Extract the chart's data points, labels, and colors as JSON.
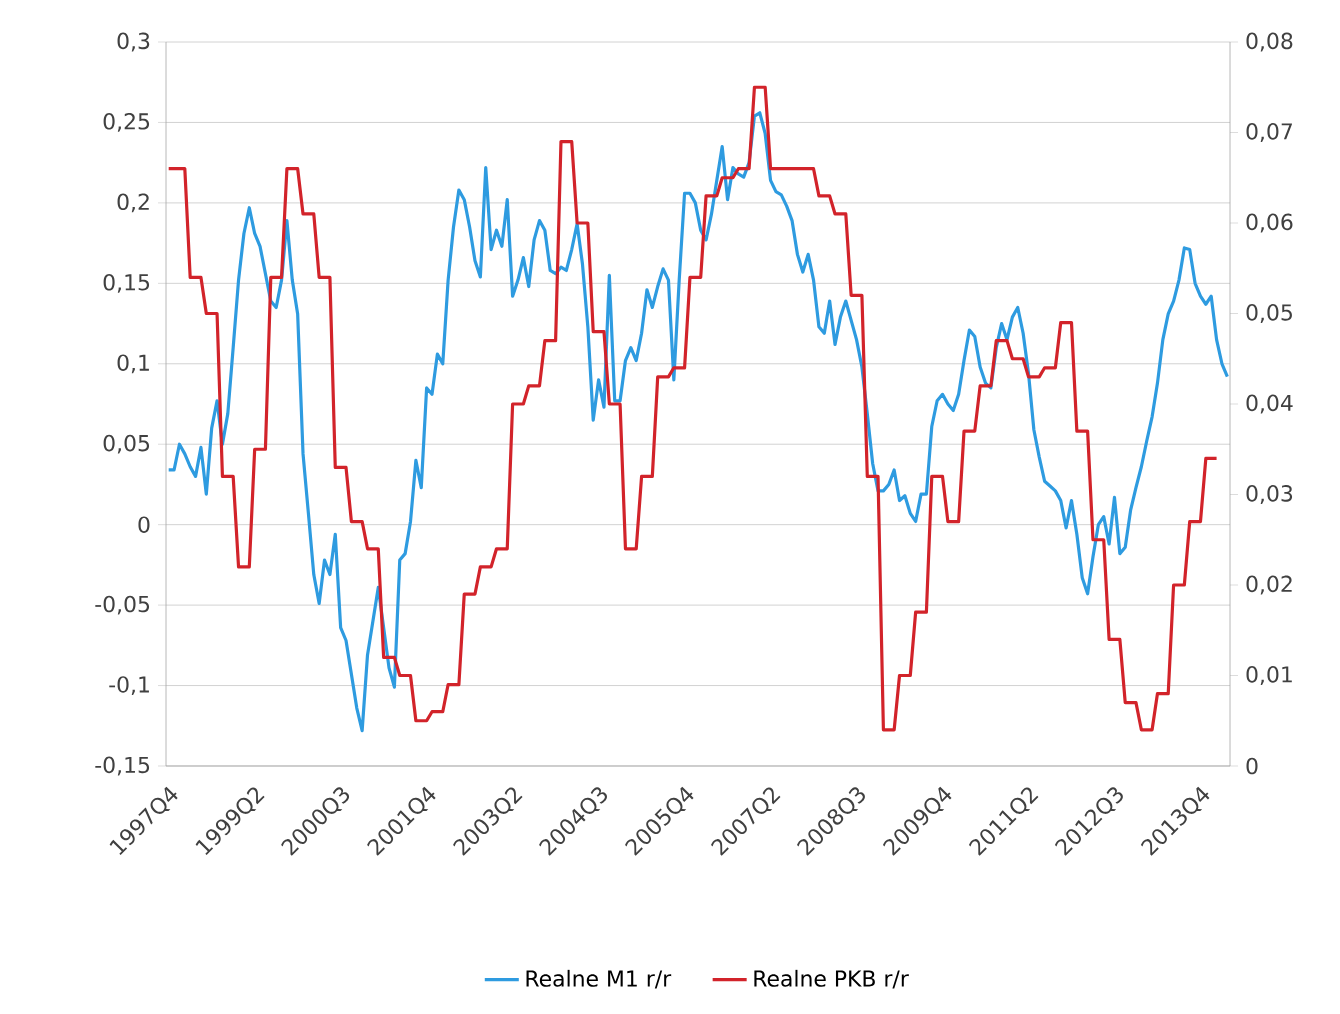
{
  "chart_data": {
    "type": "line",
    "categories": [
      "1997Q4",
      null,
      null,
      null,
      null,
      null,
      null,
      null,
      null,
      null,
      null,
      null,
      null,
      null,
      null,
      null,
      "1999Q2",
      null,
      null,
      null,
      null,
      null,
      null,
      null,
      null,
      null,
      null,
      null,
      null,
      null,
      null,
      null,
      "2000Q3",
      null,
      null,
      null,
      null,
      null,
      null,
      null,
      null,
      null,
      null,
      null,
      null,
      null,
      null,
      null,
      "2001Q4",
      null,
      null,
      null,
      null,
      null,
      null,
      null,
      null,
      null,
      null,
      null,
      null,
      null,
      null,
      null,
      "2003Q2",
      null,
      null,
      null,
      null,
      null,
      null,
      null,
      null,
      null,
      null,
      null,
      null,
      null,
      null,
      null,
      "2004Q3",
      null,
      null,
      null,
      null,
      null,
      null,
      null,
      null,
      null,
      null,
      null,
      null,
      null,
      null,
      null,
      "2005Q4",
      null,
      null,
      null,
      null,
      null,
      null,
      null,
      null,
      null,
      null,
      null,
      null,
      null,
      null,
      null,
      "2007Q2",
      null,
      null,
      null,
      null,
      null,
      null,
      null,
      null,
      null,
      null,
      null,
      null,
      null,
      null,
      null,
      "2008Q3",
      null,
      null,
      null,
      null,
      null,
      null,
      null,
      null,
      null,
      null,
      null,
      null,
      null,
      null,
      null,
      "2009Q4",
      null,
      null,
      null,
      null,
      null,
      null,
      null,
      null,
      null,
      null,
      null,
      null,
      null,
      null,
      null,
      "2011Q2",
      null,
      null,
      null,
      null,
      null,
      null,
      null,
      null,
      null,
      null,
      null,
      null,
      null,
      null,
      null,
      "2012Q3",
      null,
      null,
      null,
      null,
      null,
      null,
      null,
      null,
      null,
      null,
      null,
      null,
      null,
      null,
      null,
      "2013Q4",
      null,
      null,
      null,
      null,
      null
    ],
    "series": [
      {
        "name": "Realne M1 r/r",
        "color": "#2e9be0",
        "axis": "y",
        "values": [
          0.034,
          0.034,
          0.05,
          0.044,
          0.036,
          0.03,
          0.048,
          0.019,
          0.06,
          0.077,
          0.05,
          0.069,
          0.11,
          0.152,
          0.181,
          0.197,
          0.181,
          0.173,
          0.156,
          0.139,
          0.135,
          0.152,
          0.189,
          0.152,
          0.131,
          0.044,
          0.007,
          -0.031,
          -0.049,
          -0.022,
          -0.031,
          -0.006,
          -0.064,
          -0.072,
          -0.093,
          -0.114,
          -0.128,
          -0.081,
          -0.06,
          -0.039,
          -0.064,
          -0.089,
          -0.101,
          -0.022,
          -0.018,
          0.002,
          0.04,
          0.023,
          0.085,
          0.081,
          0.106,
          0.1,
          0.152,
          0.185,
          0.208,
          0.202,
          0.185,
          0.164,
          0.154,
          0.222,
          0.171,
          0.183,
          0.173,
          0.202,
          0.142,
          0.152,
          0.166,
          0.148,
          0.177,
          0.189,
          0.183,
          0.158,
          0.156,
          0.16,
          0.158,
          0.171,
          0.187,
          0.162,
          0.123,
          0.065,
          0.09,
          0.073,
          0.155,
          0.077,
          0.077,
          0.102,
          0.11,
          0.102,
          0.119,
          0.146,
          0.135,
          0.148,
          0.159,
          0.152,
          0.09,
          0.152,
          0.206,
          0.206,
          0.2,
          0.183,
          0.177,
          0.193,
          0.214,
          0.235,
          0.202,
          0.222,
          0.218,
          0.216,
          0.225,
          0.254,
          0.256,
          0.243,
          0.214,
          0.207,
          0.205,
          0.198,
          0.189,
          0.168,
          0.157,
          0.168,
          0.152,
          0.123,
          0.119,
          0.139,
          0.112,
          0.129,
          0.139,
          0.127,
          0.115,
          0.098,
          0.069,
          0.038,
          0.021,
          0.021,
          0.025,
          0.034,
          0.015,
          0.018,
          0.007,
          0.002,
          0.019,
          0.019,
          0.061,
          0.077,
          0.081,
          0.075,
          0.071,
          0.081,
          0.102,
          0.121,
          0.117,
          0.098,
          0.088,
          0.085,
          0.11,
          0.125,
          0.115,
          0.129,
          0.135,
          0.119,
          0.094,
          0.059,
          0.042,
          0.027,
          0.024,
          0.021,
          0.015,
          -0.002,
          0.015,
          -0.006,
          -0.033,
          -0.043,
          -0.02,
          0,
          0.005,
          -0.012,
          0.017,
          -0.018,
          -0.014,
          0.009,
          0.023,
          0.036,
          0.052,
          0.067,
          0.088,
          0.115,
          0.131,
          0.139,
          0.152,
          0.172,
          0.171,
          0.15,
          0.142,
          0.137,
          0.142,
          0.115,
          0.1,
          0.092
        ]
      },
      {
        "name": "Realne PKB r/r",
        "color": "#d2232a",
        "axis": "y2",
        "values": [
          0.066,
          0.066,
          0.066,
          0.066,
          0.054,
          0.054,
          0.054,
          0.05,
          0.05,
          0.05,
          0.032,
          0.032,
          0.032,
          0.022,
          0.022,
          0.022,
          0.035,
          0.035,
          0.035,
          0.054,
          0.054,
          0.054,
          0.066,
          0.066,
          0.066,
          0.061,
          0.061,
          0.061,
          0.054,
          0.054,
          0.054,
          0.033,
          0.033,
          0.033,
          0.027,
          0.027,
          0.027,
          0.024,
          0.024,
          0.024,
          0.012,
          0.012,
          0.012,
          0.01,
          0.01,
          0.01,
          0.005,
          0.005,
          0.005,
          0.006,
          0.006,
          0.006,
          0.009,
          0.009,
          0.009,
          0.019,
          0.019,
          0.019,
          0.022,
          0.022,
          0.022,
          0.024,
          0.024,
          0.024,
          0.04,
          0.04,
          0.04,
          0.042,
          0.042,
          0.042,
          0.047,
          0.047,
          0.047,
          0.069,
          0.069,
          0.069,
          0.06,
          0.06,
          0.06,
          0.048,
          0.048,
          0.048,
          0.04,
          0.04,
          0.04,
          0.024,
          0.024,
          0.024,
          0.032,
          0.032,
          0.032,
          0.043,
          0.043,
          0.043,
          0.044,
          0.044,
          0.044,
          0.054,
          0.054,
          0.054,
          0.063,
          0.063,
          0.063,
          0.065,
          0.065,
          0.065,
          0.066,
          0.066,
          0.066,
          0.075,
          0.075,
          0.075,
          0.066,
          0.066,
          0.066,
          0.066,
          0.066,
          0.066,
          0.066,
          0.066,
          0.066,
          0.063,
          0.063,
          0.063,
          0.061,
          0.061,
          0.061,
          0.052,
          0.052,
          0.052,
          0.032,
          0.032,
          0.032,
          0.004,
          0.004,
          0.004,
          0.01,
          0.01,
          0.01,
          0.017,
          0.017,
          0.017,
          0.032,
          0.032,
          0.032,
          0.027,
          0.027,
          0.027,
          0.037,
          0.037,
          0.037,
          0.042,
          0.042,
          0.042,
          0.047,
          0.047,
          0.047,
          0.045,
          0.045,
          0.045,
          0.043,
          0.043,
          0.043,
          0.044,
          0.044,
          0.044,
          0.049,
          0.049,
          0.049,
          0.037,
          0.037,
          0.037,
          0.025,
          0.025,
          0.025,
          0.014,
          0.014,
          0.014,
          0.007,
          0.007,
          0.007,
          0.004,
          0.004,
          0.004,
          0.008,
          0.008,
          0.008,
          0.02,
          0.02,
          0.02,
          0.027,
          0.027,
          0.027,
          0.034,
          0.034,
          0.034,
          null,
          null
        ]
      }
    ],
    "ylim": [
      -0.15,
      0.3
    ],
    "yticks": [
      {
        "value": -0.15,
        "label": "-0,15"
      },
      {
        "value": -0.1,
        "label": "-0,1"
      },
      {
        "value": -0.05,
        "label": "-0,05"
      },
      0,
      {
        "value": 0.05,
        "label": "0,05"
      },
      {
        "value": 0.1,
        "label": "0,1"
      },
      {
        "value": 0.15,
        "label": "0,15"
      },
      {
        "value": 0.2,
        "label": "0,2"
      },
      {
        "value": 0.25,
        "label": "0,25"
      },
      {
        "value": 0.3,
        "label": "0,3"
      }
    ],
    "y2lim": [
      0,
      0.08
    ],
    "y2ticks": [
      0,
      {
        "value": 0.01,
        "label": "0,01"
      },
      {
        "value": 0.02,
        "label": "0,02"
      },
      {
        "value": 0.03,
        "label": "0,03"
      },
      {
        "value": 0.04,
        "label": "0,04"
      },
      {
        "value": 0.05,
        "label": "0,05"
      },
      {
        "value": 0.06,
        "label": "0,06"
      },
      {
        "value": 0.07,
        "label": "0,07"
      },
      {
        "value": 0.08,
        "label": "0,08"
      }
    ],
    "grid": "y",
    "legend": "bottom",
    "line_style": "solid"
  }
}
